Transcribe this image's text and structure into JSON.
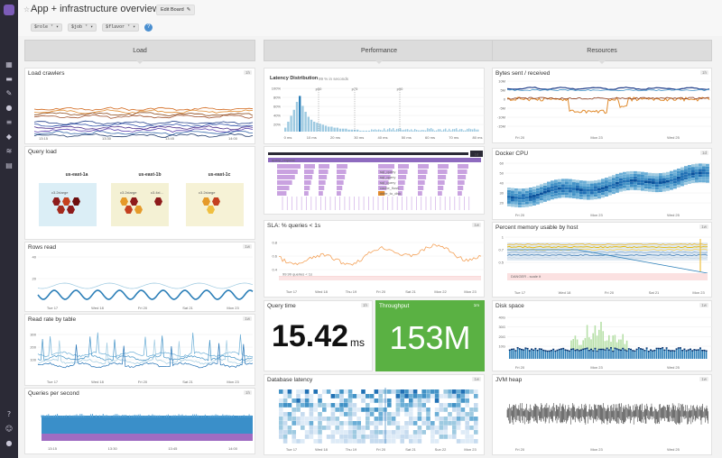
{
  "header": {
    "title": "App + infrastructure overview",
    "edit_label": "Edit Board",
    "vars": [
      {
        "name": "$role",
        "value": "*"
      },
      {
        "name": "$job",
        "value": "*"
      },
      {
        "name": "$flavor",
        "value": "*"
      }
    ],
    "help": "?"
  },
  "groups": {
    "load": "Load",
    "performance": "Performance",
    "resources": "Resources"
  },
  "load": {
    "crawlers": {
      "title": "Load crawlers",
      "tag": "1h",
      "ticks": [
        "13:15",
        "13:30",
        "13:45",
        "14:00"
      ]
    },
    "query_load": {
      "title": "Query load",
      "hosts": [
        {
          "label": "us-east-1a",
          "cap": "c3.2xlarge"
        },
        {
          "label": "us-east-1b",
          "cap": "c3.2xlarge"
        },
        {
          "label": "us-east-1c",
          "cap": "c3.2xlarge"
        }
      ],
      "cap_extra": "c3.4xl..."
    },
    "rows_read": {
      "title": "Rows read",
      "tag": "1w",
      "yticks": [
        "40",
        "20"
      ],
      "ticks": [
        "Tue 17",
        "Wed 18",
        "Fri 20",
        "Sat 21",
        "Mon 23"
      ]
    },
    "read_rate": {
      "title": "Read rate by table",
      "tag": "1w",
      "yticks": [
        "300",
        "200",
        "100"
      ],
      "ticks": [
        "Tue 17",
        "Wed 18",
        "Fri 20",
        "Sat 21",
        "Mon 23"
      ]
    },
    "qps": {
      "title": "Queries per second",
      "tag": "1h",
      "ticks": [
        "13:15",
        "13:30",
        "13:45",
        "14:00"
      ]
    }
  },
  "performance": {
    "latency": {
      "title": "Latency Distribution",
      "subtitle": "99 % in seconds",
      "percentiles": [
        "p50",
        "p75",
        "p90"
      ],
      "yticks": [
        "100%",
        "80%",
        "60%",
        "40%",
        "20%"
      ],
      "xticks": [
        "0 ms",
        "10 ms",
        "20 ms",
        "30 ms",
        "40 ms",
        "50 ms",
        "60 ms",
        "70 ms",
        "80 ms"
      ]
    },
    "trace": {
      "badge": "1d",
      "labels": [
        "query_request",
        "sql_query",
        "sql_query",
        "sql_query",
        "cache_flush",
        "write_to_disk"
      ]
    },
    "sla": {
      "title": "SLA: % queries < 1s",
      "tag": "1w",
      "yticks": [
        "0.8",
        "0.6",
        "0.4"
      ],
      "threshold": "99.99 queries < 1s",
      "ticks": [
        "Tue 17",
        "Wed 18",
        "Thu 19",
        "Fri 20",
        "Sat 21",
        "Mon 22",
        "Mon 23"
      ]
    },
    "query_time": {
      "title": "Query time",
      "tag": "1h",
      "value": "15.42",
      "unit": "ms"
    },
    "throughput": {
      "title": "Throughput",
      "tag": "1m",
      "value": "153M"
    },
    "db_latency": {
      "title": "Database latency",
      "tag": "1w",
      "ticks": [
        "Tue 17",
        "Wed 18",
        "Thu 19",
        "Fri 20",
        "Sat 21",
        "Sun 22",
        "Mon 23"
      ]
    }
  },
  "resources": {
    "bytes": {
      "title": "Bytes sent / received",
      "tag": "1h",
      "yticks": [
        "10M",
        "5M",
        "0",
        "-5M",
        "-10M",
        "-15M"
      ],
      "ticks": [
        "Fri 20",
        "Mon 23",
        "Wed 25"
      ]
    },
    "docker": {
      "title": "Docker CPU",
      "tag": "1d",
      "yticks": [
        "60",
        "50",
        "40",
        "30",
        "20"
      ],
      "ticks": [
        "Fri 20",
        "Mon 23",
        "Wed 25"
      ]
    },
    "memory": {
      "title": "Percent memory usable by host",
      "tag": "1w",
      "yticks": [
        "1",
        "0.7",
        "0.5"
      ],
      "threshold": "DANGER - scale it",
      "ticks": [
        "Tue 17",
        "Wed 18",
        "Fri 20",
        "Sat 21",
        "Mon 23"
      ]
    },
    "disk": {
      "title": "Disk space",
      "tag": "1w",
      "yticks": [
        "40G",
        "30G",
        "20G",
        "10G"
      ],
      "ticks": [
        "Fri 20",
        "Mon 23",
        "Wed 25"
      ]
    },
    "jvm": {
      "title": "JVM heap",
      "tag": "1w",
      "ticks": [
        "Fri 20",
        "Mon 23",
        "Wed 25"
      ]
    }
  },
  "colors": {
    "accent": "#7c5cb8",
    "green": "#5ab143",
    "sidebar": "#2b2a36",
    "blue": "#2c7bb6",
    "orange": "#e08a2c",
    "purple": "#b07cc6"
  }
}
